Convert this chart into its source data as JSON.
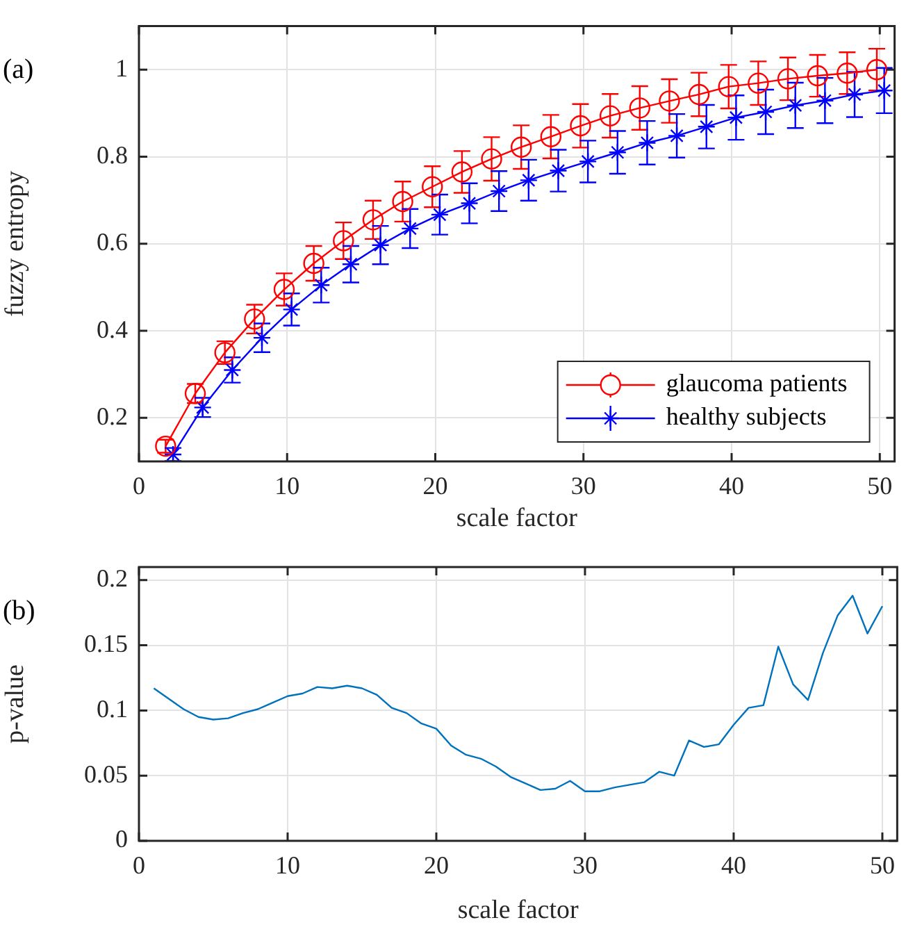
{
  "chart_data": [
    {
      "type": "line",
      "annotations": [
        "(a)"
      ],
      "xlabel": "scale factor",
      "ylabel": "fuzzy entropy",
      "xlim": [
        0,
        51
      ],
      "xticks": [
        0,
        10,
        20,
        30,
        40,
        50
      ],
      "ylim": [
        0.1,
        1.1
      ],
      "yticks": [
        0.2,
        0.4,
        0.6,
        0.8,
        1
      ],
      "grid": true,
      "legend": "bottom right",
      "series": [
        {
          "name": "glaucoma patients",
          "color": "#ff0000",
          "marker": "circle",
          "x": [
            1.8,
            3.8,
            5.8,
            7.8,
            9.8,
            11.8,
            13.8,
            15.8,
            17.8,
            19.8,
            21.8,
            23.8,
            25.8,
            27.8,
            29.8,
            31.8,
            33.8,
            35.8,
            37.8,
            39.8,
            41.8,
            43.8,
            45.8,
            47.8,
            49.8
          ],
          "values": [
            0.135,
            0.256,
            0.35,
            0.427,
            0.495,
            0.555,
            0.607,
            0.655,
            0.697,
            0.731,
            0.765,
            0.795,
            0.822,
            0.846,
            0.871,
            0.894,
            0.912,
            0.928,
            0.943,
            0.961,
            0.969,
            0.979,
            0.986,
            0.992,
            1.0
          ],
          "errors": [
            0.015,
            0.022,
            0.026,
            0.033,
            0.037,
            0.04,
            0.042,
            0.044,
            0.046,
            0.047,
            0.048,
            0.05,
            0.05,
            0.05,
            0.05,
            0.05,
            0.05,
            0.05,
            0.05,
            0.05,
            0.05,
            0.049,
            0.048,
            0.048,
            0.048
          ]
        },
        {
          "name": "healthy subjects",
          "color": "#0000ff",
          "marker": "cross",
          "x": [
            2.3,
            4.3,
            6.3,
            8.3,
            10.3,
            12.3,
            14.3,
            16.3,
            18.3,
            20.3,
            22.3,
            24.3,
            26.3,
            28.3,
            30.3,
            32.3,
            34.3,
            36.3,
            38.3,
            40.3,
            42.3,
            44.3,
            46.3,
            48.3,
            50.3
          ],
          "values": [
            0.116,
            0.224,
            0.31,
            0.384,
            0.449,
            0.505,
            0.553,
            0.597,
            0.635,
            0.667,
            0.693,
            0.721,
            0.746,
            0.768,
            0.789,
            0.81,
            0.832,
            0.848,
            0.869,
            0.89,
            0.903,
            0.918,
            0.929,
            0.943,
            0.952
          ],
          "errors": [
            0.015,
            0.022,
            0.029,
            0.033,
            0.037,
            0.04,
            0.042,
            0.044,
            0.045,
            0.046,
            0.046,
            0.046,
            0.047,
            0.048,
            0.048,
            0.049,
            0.05,
            0.05,
            0.05,
            0.051,
            0.051,
            0.052,
            0.052,
            0.052,
            0.052
          ]
        }
      ]
    },
    {
      "type": "line",
      "annotations": [
        "(b)"
      ],
      "xlabel": "scale factor",
      "ylabel": "p-value",
      "xlim": [
        0,
        51
      ],
      "xticks": [
        0,
        10,
        20,
        30,
        40,
        50
      ],
      "ylim": [
        0,
        0.21
      ],
      "yticks": [
        0,
        0.05,
        0.1,
        0.15,
        0.2
      ],
      "grid": true,
      "series": [
        {
          "color": "#0072bd",
          "marker": "none",
          "x": [
            1,
            2,
            3,
            4,
            5,
            6,
            7,
            8,
            9,
            10,
            11,
            12,
            13,
            14,
            15,
            16,
            17,
            18,
            19,
            20,
            21,
            22,
            23,
            24,
            25,
            26,
            27,
            28,
            29,
            30,
            31,
            32,
            33,
            34,
            35,
            36,
            37,
            38,
            39,
            40,
            41,
            42,
            43,
            44,
            45,
            46,
            47,
            48,
            49,
            50
          ],
          "values": [
            0.117,
            0.109,
            0.101,
            0.095,
            0.093,
            0.094,
            0.098,
            0.101,
            0.106,
            0.111,
            0.113,
            0.118,
            0.117,
            0.119,
            0.117,
            0.112,
            0.102,
            0.098,
            0.09,
            0.086,
            0.073,
            0.066,
            0.063,
            0.057,
            0.049,
            0.044,
            0.039,
            0.04,
            0.046,
            0.038,
            0.038,
            0.041,
            0.043,
            0.045,
            0.053,
            0.05,
            0.077,
            0.072,
            0.074,
            0.089,
            0.102,
            0.104,
            0.149,
            0.12,
            0.108,
            0.144,
            0.173,
            0.188,
            0.159,
            0.18
          ]
        }
      ]
    }
  ]
}
